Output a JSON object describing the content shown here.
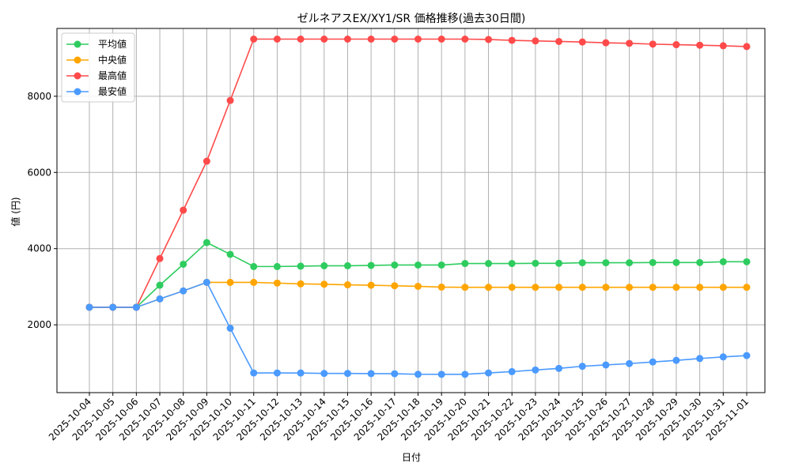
{
  "chart_data": {
    "type": "line",
    "title": "ゼルネアスEX/XY1/SR 価格推移(過去30日間)",
    "xlabel": "日付",
    "ylabel": "値 (円)",
    "ylim": [
      220,
      9780
    ],
    "yticks": [
      2000,
      4000,
      6000,
      8000
    ],
    "grid": true,
    "legend_position": "top-left",
    "x": [
      "2025-10-04",
      "2025-10-05",
      "2025-10-06",
      "2025-10-07",
      "2025-10-08",
      "2025-10-09",
      "2025-10-10",
      "2025-10-11",
      "2025-10-12",
      "2025-10-13",
      "2025-10-14",
      "2025-10-15",
      "2025-10-16",
      "2025-10-17",
      "2025-10-18",
      "2025-10-19",
      "2025-10-20",
      "2025-10-21",
      "2025-10-22",
      "2025-10-23",
      "2025-10-24",
      "2025-10-25",
      "2025-10-26",
      "2025-10-27",
      "2025-10-28",
      "2025-10-29",
      "2025-10-30",
      "2025-10-31",
      "2025-11-01"
    ],
    "series": [
      {
        "name": "平均値",
        "color": "#2ecc5f",
        "values": [
          2460,
          2460,
          2460,
          3040,
          3590,
          4160,
          3850,
          3530,
          3530,
          3540,
          3550,
          3550,
          3560,
          3570,
          3570,
          3570,
          3610,
          3610,
          3610,
          3615,
          3615,
          3630,
          3630,
          3630,
          3635,
          3635,
          3635,
          3655,
          3655
        ]
      },
      {
        "name": "中央値",
        "color": "#ffa500",
        "values": [
          2460,
          2460,
          2460,
          2680,
          2890,
          3115,
          3115,
          3115,
          3095,
          3075,
          3065,
          3050,
          3040,
          3025,
          3010,
          2990,
          2985,
          2985,
          2985,
          2985,
          2985,
          2985,
          2985,
          2985,
          2985,
          2985,
          2985,
          2985,
          2985
        ]
      },
      {
        "name": "最高値",
        "color": "#ff4a4a",
        "values": [
          2460,
          2460,
          2460,
          3740,
          5010,
          6295,
          7890,
          9500,
          9500,
          9500,
          9500,
          9500,
          9500,
          9500,
          9500,
          9500,
          9500,
          9490,
          9467,
          9453,
          9439,
          9424,
          9403,
          9389,
          9368,
          9354,
          9340,
          9326,
          9305
        ]
      },
      {
        "name": "最安値",
        "color": "#4a9aff",
        "values": [
          2460,
          2460,
          2460,
          2680,
          2890,
          3115,
          1910,
          737,
          737,
          735,
          725,
          725,
          720,
          716,
          702,
          700,
          700,
          737,
          772,
          814,
          856,
          912,
          947,
          982,
          1025,
          1067,
          1116,
          1158,
          1193
        ]
      }
    ]
  }
}
